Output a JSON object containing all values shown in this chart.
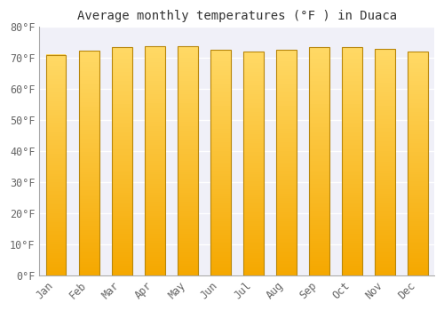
{
  "title": "Average monthly temperatures (°F ) in Duaca",
  "months": [
    "Jan",
    "Feb",
    "Mar",
    "Apr",
    "May",
    "Jun",
    "Jul",
    "Aug",
    "Sep",
    "Oct",
    "Nov",
    "Dec"
  ],
  "values": [
    71.1,
    72.3,
    73.6,
    73.8,
    73.8,
    72.7,
    72.1,
    72.7,
    73.6,
    73.6,
    73.0,
    72.1
  ],
  "ylim": [
    0,
    80
  ],
  "yticks": [
    0,
    10,
    20,
    30,
    40,
    50,
    60,
    70,
    80
  ],
  "ytick_labels": [
    "0°F",
    "10°F",
    "20°F",
    "30°F",
    "40°F",
    "50°F",
    "60°F",
    "70°F",
    "80°F"
  ],
  "bar_color_bottom": "#F5A800",
  "bar_color_top": "#FFD966",
  "bar_edge_color": "#B8860B",
  "background_color": "#ffffff",
  "plot_bg_color": "#f0f0f8",
  "grid_color": "#ffffff",
  "title_fontsize": 10,
  "tick_fontsize": 8.5,
  "font_family": "monospace",
  "bar_width": 0.62
}
